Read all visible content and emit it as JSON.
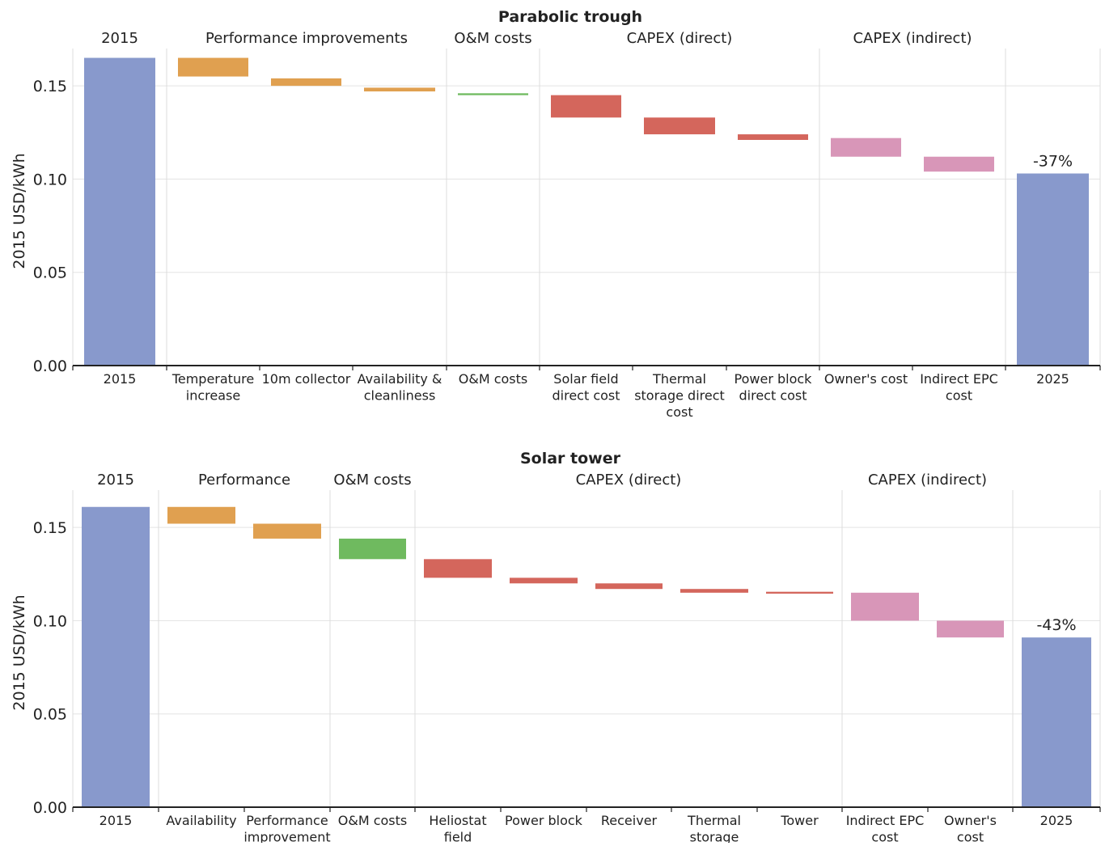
{
  "chart_data": [
    {
      "type": "bar",
      "subtype": "waterfall",
      "title": "Parabolic trough",
      "ylabel": "2015 USD/kWh",
      "ylim": [
        0,
        0.17
      ],
      "yticks": [
        "0.00",
        "0.05",
        "0.10",
        "0.15"
      ],
      "grid": true,
      "colors": {
        "total": "#8899cc",
        "performance": "#e0a050",
        "om": "#6fba5f",
        "capex_direct": "#d4665c",
        "capex_indirect": "#d896b8"
      },
      "groups": [
        {
          "label": "2015",
          "span": 1
        },
        {
          "label": "Performance improvements",
          "span": 3
        },
        {
          "label": "O&M costs",
          "span": 1
        },
        {
          "label": "CAPEX (direct)",
          "span": 3
        },
        {
          "label": "CAPEX (indirect)",
          "span": 2
        },
        {
          "label": "",
          "span": 1
        }
      ],
      "bars": [
        {
          "category": [
            "2015"
          ],
          "kind": "total",
          "start": 0,
          "end": 0.165
        },
        {
          "category": [
            "Temperature",
            "increase"
          ],
          "kind": "performance",
          "start": 0.165,
          "end": 0.155
        },
        {
          "category": [
            "10m collector"
          ],
          "kind": "performance",
          "start": 0.154,
          "end": 0.15
        },
        {
          "category": [
            "Availability &",
            "cleanliness"
          ],
          "kind": "performance",
          "start": 0.149,
          "end": 0.147
        },
        {
          "category": [
            "O&M costs"
          ],
          "kind": "om",
          "start": 0.146,
          "end": 0.145
        },
        {
          "category": [
            "Solar field",
            "direct cost"
          ],
          "kind": "capex_direct",
          "start": 0.145,
          "end": 0.133
        },
        {
          "category": [
            "Thermal",
            "storage direct",
            "cost"
          ],
          "kind": "capex_direct",
          "start": 0.133,
          "end": 0.124
        },
        {
          "category": [
            "Power block",
            "direct cost"
          ],
          "kind": "capex_direct",
          "start": 0.124,
          "end": 0.121
        },
        {
          "category": [
            "Owner's cost"
          ],
          "kind": "capex_indirect",
          "start": 0.122,
          "end": 0.112
        },
        {
          "category": [
            "Indirect EPC",
            "cost"
          ],
          "kind": "capex_indirect",
          "start": 0.112,
          "end": 0.104
        },
        {
          "category": [
            "2025"
          ],
          "kind": "total",
          "start": 0,
          "end": 0.103,
          "label": "-37%"
        }
      ]
    },
    {
      "type": "bar",
      "subtype": "waterfall",
      "title": "Solar tower",
      "ylabel": "2015 USD/kWh",
      "ylim": [
        0,
        0.17
      ],
      "yticks": [
        "0.00",
        "0.05",
        "0.10",
        "0.15"
      ],
      "grid": true,
      "colors": {
        "total": "#8899cc",
        "performance": "#e0a050",
        "om": "#6fba5f",
        "capex_direct": "#d4665c",
        "capex_indirect": "#d896b8"
      },
      "groups": [
        {
          "label": "2015",
          "span": 1
        },
        {
          "label": "Performance",
          "span": 2
        },
        {
          "label": "O&M costs",
          "span": 1
        },
        {
          "label": "CAPEX (direct)",
          "span": 5
        },
        {
          "label": "CAPEX (indirect)",
          "span": 2
        },
        {
          "label": "",
          "span": 1
        }
      ],
      "bars": [
        {
          "category": [
            "2015"
          ],
          "kind": "total",
          "start": 0,
          "end": 0.161
        },
        {
          "category": [
            "Availability"
          ],
          "kind": "performance",
          "start": 0.161,
          "end": 0.152
        },
        {
          "category": [
            "Performance",
            "improvement"
          ],
          "kind": "performance",
          "start": 0.152,
          "end": 0.144
        },
        {
          "category": [
            "O&M costs"
          ],
          "kind": "om",
          "start": 0.144,
          "end": 0.133
        },
        {
          "category": [
            "Heliostat",
            "field"
          ],
          "kind": "capex_direct",
          "start": 0.133,
          "end": 0.123
        },
        {
          "category": [
            "Power block"
          ],
          "kind": "capex_direct",
          "start": 0.123,
          "end": 0.12
        },
        {
          "category": [
            "Receiver"
          ],
          "kind": "capex_direct",
          "start": 0.12,
          "end": 0.117
        },
        {
          "category": [
            "Thermal",
            "storage"
          ],
          "kind": "capex_direct",
          "start": 0.117,
          "end": 0.115
        },
        {
          "category": [
            "Tower"
          ],
          "kind": "capex_direct",
          "start": 0.1155,
          "end": 0.1145
        },
        {
          "category": [
            "Indirect EPC",
            "cost"
          ],
          "kind": "capex_indirect",
          "start": 0.115,
          "end": 0.1
        },
        {
          "category": [
            "Owner's",
            "cost"
          ],
          "kind": "capex_indirect",
          "start": 0.1,
          "end": 0.091
        },
        {
          "category": [
            "2025"
          ],
          "kind": "total",
          "start": 0,
          "end": 0.091,
          "label": "-43%"
        }
      ]
    }
  ]
}
